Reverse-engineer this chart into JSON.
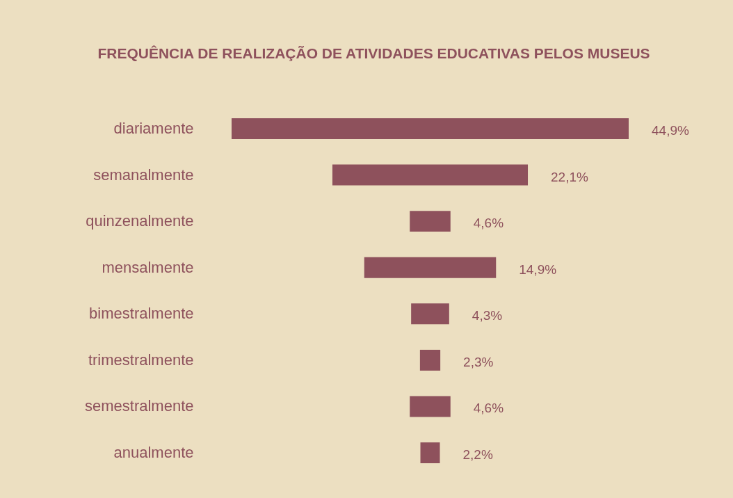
{
  "chart_data": {
    "type": "other",
    "title": "FREQUÊNCIA DE REALIZAÇÃO DE ATIVIDADES EDUCATIVAS PELOS MUSEUS",
    "categories": [
      "diariamente",
      "semanalmente",
      "quinzenalmente",
      "mensalmente",
      "bimestralmente",
      "trimestralmente",
      "semestralmente",
      "anualmente"
    ],
    "values": [
      44.9,
      22.1,
      4.6,
      14.9,
      4.3,
      2.3,
      4.6,
      2.2
    ],
    "value_labels": [
      "44,9%",
      "22,1%",
      "4,6%",
      "14,9%",
      "4,3%",
      "2,3%",
      "4,6%",
      "2,2%"
    ],
    "color": "#8e515c"
  }
}
